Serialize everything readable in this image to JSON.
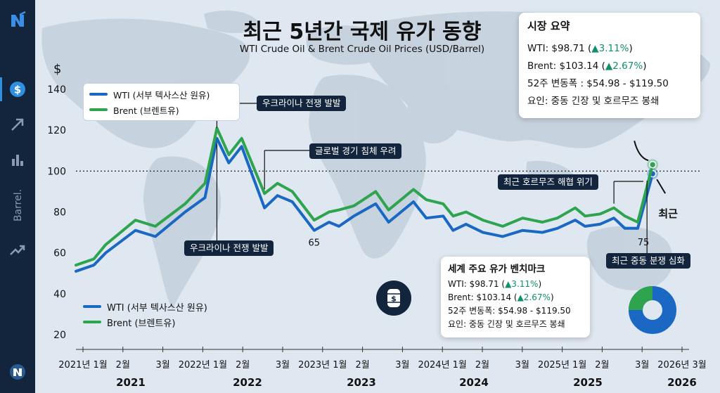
{
  "title": "최근 5년간 국제 유가 동향",
  "subtitle": "WTI Crude Oil & Brent Crude Oil Prices (USD/Barrel)",
  "sidebar": {
    "vertical_label": "Barrel.",
    "icons": [
      "logo-icon",
      "dollar-icon",
      "trend-arrow-icon",
      "bar-chart-icon",
      "trending-up-icon",
      "bottom-logo-icon"
    ]
  },
  "colors": {
    "wti": "#1a68c4",
    "brent": "#2ea44f",
    "navy": "#13243d",
    "up": "#0f8f6b"
  },
  "legend_top": [
    {
      "label": "WTI (서부 텍사스산 원유)",
      "color": "#1a68c4"
    },
    {
      "label": "Brent (브렌트유)",
      "color": "#2ea44f"
    }
  ],
  "legend_bottom": [
    {
      "label": "WTI (서부 텍사스산 원유)",
      "color": "#1a68c4"
    },
    {
      "label": "Brent (브렌트유)",
      "color": "#2ea44f"
    }
  ],
  "summary": {
    "title": "시장 요약",
    "wti_text": "WTI: $98.71 (",
    "wti_change": "▲3.11%",
    "wti_close": ")",
    "brent_text": "Brent: $103.14 (",
    "brent_change": "▲2.67%",
    "brent_close": ")",
    "range": "52주 변동폭 : $54.98 - $119.50",
    "factors": "요인: 중동 긴장 및 호르무즈 봉쇄"
  },
  "benchmark": {
    "title": "세계 주요 유가 벤치마크",
    "wti_text": "WTI: $98.71 (",
    "wti_change": "▲3.11%",
    "wti_close": ")",
    "brent_text": "Brent: $103.14 (",
    "brent_change": "▲2.67%",
    "brent_close": ")",
    "range": "52주 변동폭: $54.98 - $119.50",
    "factors": "요인: 중동 긴장 및 호르무즈 봉쇄"
  },
  "callouts": {
    "ukraine_top": "우크라이나 전쟁 발발",
    "ukraine_bottom": "우크라이나 전쟁 발발",
    "recession": "글로벌 경기 침체 우려",
    "hormuz": "최근 호르무즈 해협 위기",
    "mideast": "최근 중동 분쟁 심화",
    "recent": "최근"
  },
  "chart_data": {
    "type": "line",
    "ylabel": "$",
    "ylim": [
      15,
      142
    ],
    "yticks": [
      20,
      40,
      60,
      80,
      100,
      120,
      140
    ],
    "reference_line": 100,
    "month_labels": [
      "2021년 1월",
      "2월",
      "3월",
      "2022년 1월",
      "2월",
      "3월",
      "2023년 1월",
      "2월",
      "3월",
      "2024년 1월",
      "2월",
      "3월",
      "2025년 1월",
      "2월",
      "3월",
      "2026년 3월"
    ],
    "year_labels": [
      "2021",
      "2022",
      "2023",
      "2024",
      "2025",
      "2026"
    ],
    "series": [
      {
        "name": "WTI (서부 텍사스산 원유)",
        "color": "#1a68c4",
        "points": [
          [
            0,
            51
          ],
          [
            1.8,
            54
          ],
          [
            3,
            60
          ],
          [
            6,
            71
          ],
          [
            8,
            68
          ],
          [
            11,
            80
          ],
          [
            13,
            87
          ],
          [
            14.2,
            116
          ],
          [
            15.4,
            104
          ],
          [
            16.7,
            112
          ],
          [
            19,
            82
          ],
          [
            20.3,
            88
          ],
          [
            21.8,
            85
          ],
          [
            24,
            71
          ],
          [
            25.5,
            75
          ],
          [
            26.5,
            73
          ],
          [
            28,
            78
          ],
          [
            30.2,
            84
          ],
          [
            31.5,
            75
          ],
          [
            34,
            85
          ],
          [
            35.3,
            77
          ],
          [
            37,
            78
          ],
          [
            38,
            71
          ],
          [
            39.3,
            74
          ],
          [
            41,
            70
          ],
          [
            43,
            68
          ],
          [
            45,
            71
          ],
          [
            47,
            70
          ],
          [
            48.5,
            72
          ],
          [
            50.3,
            76
          ],
          [
            51.3,
            73
          ],
          [
            52.8,
            74
          ],
          [
            54.2,
            77
          ],
          [
            55.3,
            72
          ],
          [
            56.6,
            72
          ],
          [
            58.1,
            98.71
          ]
        ]
      },
      {
        "name": "Brent (브렌트유)",
        "color": "#2ea44f",
        "points": [
          [
            0,
            54
          ],
          [
            1.8,
            57
          ],
          [
            3,
            64
          ],
          [
            6,
            76
          ],
          [
            8,
            73
          ],
          [
            11,
            84
          ],
          [
            13,
            94
          ],
          [
            14.2,
            121
          ],
          [
            15.4,
            108
          ],
          [
            16.7,
            116
          ],
          [
            19,
            89
          ],
          [
            20.3,
            94
          ],
          [
            21.8,
            90
          ],
          [
            24,
            76
          ],
          [
            25.5,
            80
          ],
          [
            26.5,
            81
          ],
          [
            28,
            83
          ],
          [
            30.2,
            90
          ],
          [
            31.5,
            81
          ],
          [
            34,
            91
          ],
          [
            35.3,
            86
          ],
          [
            37,
            84
          ],
          [
            38,
            78
          ],
          [
            39.3,
            80
          ],
          [
            41,
            76
          ],
          [
            43,
            73
          ],
          [
            45,
            77
          ],
          [
            47,
            75
          ],
          [
            48.5,
            77
          ],
          [
            50.3,
            82
          ],
          [
            51.3,
            78
          ],
          [
            52.8,
            79
          ],
          [
            54.2,
            82
          ],
          [
            55.3,
            78
          ],
          [
            56.6,
            75
          ],
          [
            58.1,
            103.14
          ]
        ]
      }
    ],
    "annotations": [
      "65",
      "75",
      "최근"
    ]
  }
}
